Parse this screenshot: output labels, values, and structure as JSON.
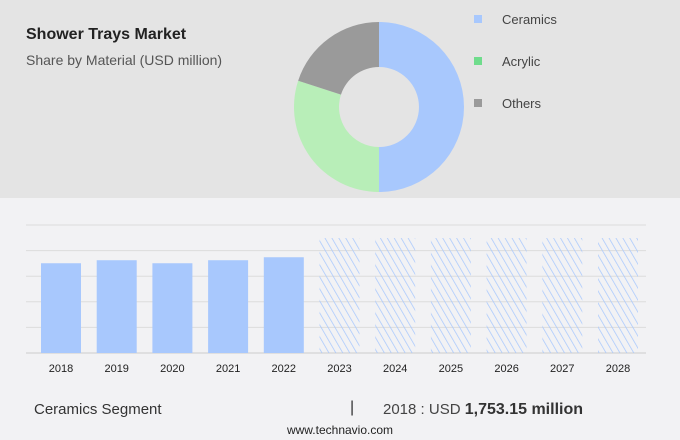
{
  "title": "Shower Trays Market",
  "subtitle": "Share by Material (USD million)",
  "colors": {
    "Ceramics": "#a8c8fd",
    "Acrylic": "#b8eeb8",
    "Others": "#9a9a9a",
    "legend_acrylic": "#6fdc8c"
  },
  "chart_data": [
    {
      "type": "pie",
      "donut": true,
      "legend_position": "right",
      "categories": [
        "Ceramics",
        "Acrylic",
        "Others"
      ],
      "values": [
        50,
        30,
        20
      ]
    },
    {
      "type": "bar",
      "categories": [
        "2018",
        "2019",
        "2020",
        "2021",
        "2022",
        "2023",
        "2024",
        "2025",
        "2026",
        "2027",
        "2028"
      ],
      "values": [
        1753.15,
        1812,
        1753,
        1812,
        1870,
        null,
        null,
        null,
        null,
        null,
        null
      ],
      "forecast": [
        "2023",
        "2024",
        "2025",
        "2026",
        "2027",
        "2028"
      ],
      "ylim": [
        0,
        2500
      ],
      "grid": true
    }
  ],
  "footer": {
    "segment": "Ceramics Segment",
    "separator": "|",
    "year_label": "2018 : USD",
    "value": "1,753.15 million",
    "site": "www.technavio.com"
  }
}
